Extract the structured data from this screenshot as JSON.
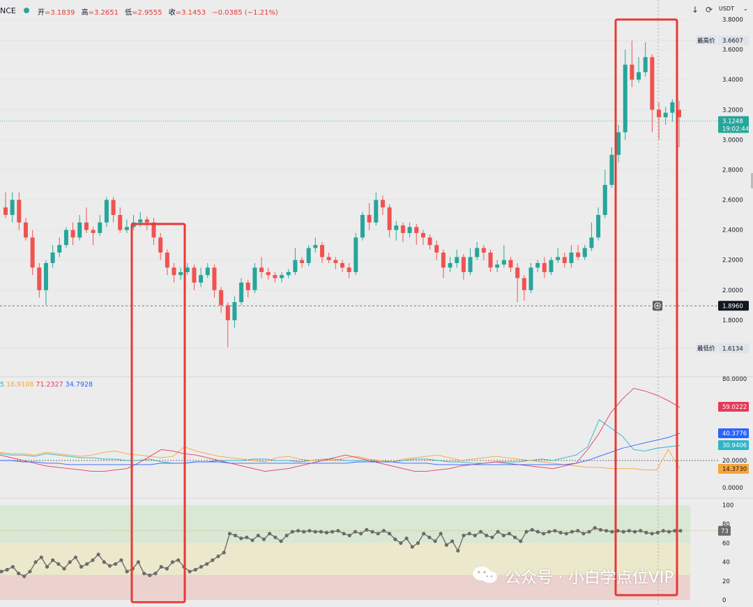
{
  "header": {
    "ticker": "NCE",
    "ohlc": [
      {
        "label": "开",
        "value": "=3.1839"
      },
      {
        "label": "高",
        "value": "=3.2651"
      },
      {
        "label": "低",
        "value": "=2.9555"
      },
      {
        "label": "收",
        "value": "=3.1453"
      },
      {
        "label": "",
        "value": "−0.0385 (−1.21%)"
      }
    ],
    "currency": "USDT",
    "icons": [
      "arrow-down-icon",
      "refresh-icon",
      "caret-down-icon"
    ]
  },
  "indicator_legend": [
    {
      "text": "5",
      "color": "#2bb5c8"
    },
    {
      "text": "16.9108",
      "color": "#f7a43a"
    },
    {
      "text": "71.2327",
      "color": "#e5395a"
    },
    {
      "text": "34.7928",
      "color": "#2962ff"
    }
  ],
  "price_labels": {
    "high_tag": "最高价",
    "high_value": "3.6607",
    "low_tag": "最低价",
    "low_value": "1.6134",
    "last_price": "3.1248",
    "countdown": "19:02:44",
    "crosshair_value": "1.8960"
  },
  "indicator_value_tags": [
    {
      "value": "59.0222",
      "color": "#e5395a"
    },
    {
      "value": "40.3776",
      "color": "#2962ff"
    },
    {
      "value": "30.9406",
      "color": "#2bb5c8"
    },
    {
      "value": "14.3730",
      "color": "#f7a43a"
    }
  ],
  "rsi_tag": "73",
  "watermark": "公众号 · 小白学点位VIP",
  "colors": {
    "up": "#26a69a",
    "down": "#ef5350",
    "highlight_box": "#e53935",
    "rsi_line": "#6b6b6b"
  },
  "chart_data": [
    {
      "type": "candlestick",
      "title": "",
      "xlabel": "",
      "ylabel": "",
      "y_ticks": [
        "3.8000",
        "3.6000",
        "3.4000",
        "3.2000",
        "3.0000",
        "2.8000",
        "2.6000",
        "2.4000",
        "2.2000",
        "2.0000",
        "1.8000"
      ],
      "ylim": [
        1.6,
        3.8
      ],
      "grid": true,
      "candles": [
        [
          2.55,
          2.5,
          2.65,
          2.48
        ],
        [
          2.5,
          2.6,
          2.65,
          2.45
        ],
        [
          2.6,
          2.45,
          2.65,
          2.4
        ],
        [
          2.45,
          2.35,
          2.48,
          2.33
        ],
        [
          2.35,
          2.15,
          2.4,
          2.1
        ],
        [
          2.15,
          2.0,
          2.18,
          1.95
        ],
        [
          2.0,
          2.18,
          2.2,
          1.9
        ],
        [
          2.18,
          2.25,
          2.3,
          2.15
        ],
        [
          2.25,
          2.3,
          2.35,
          2.22
        ],
        [
          2.3,
          2.4,
          2.42,
          2.28
        ],
        [
          2.4,
          2.35,
          2.45,
          2.3
        ],
        [
          2.35,
          2.45,
          2.5,
          2.33
        ],
        [
          2.45,
          2.4,
          2.55,
          2.38
        ],
        [
          2.4,
          2.38,
          2.42,
          2.3
        ],
        [
          2.38,
          2.45,
          2.5,
          2.36
        ],
        [
          2.45,
          2.6,
          2.62,
          2.42
        ],
        [
          2.6,
          2.5,
          2.62,
          2.45
        ],
        [
          2.5,
          2.4,
          2.55,
          2.38
        ],
        [
          2.4,
          2.42,
          2.47,
          2.38
        ],
        [
          2.42,
          2.45,
          2.5,
          2.4
        ],
        [
          2.45,
          2.47,
          2.52,
          2.42
        ],
        [
          2.47,
          2.45,
          2.49,
          2.4
        ],
        [
          2.45,
          2.35,
          2.48,
          2.3
        ],
        [
          2.35,
          2.25,
          2.38,
          2.2
        ],
        [
          2.25,
          2.15,
          2.27,
          2.1
        ],
        [
          2.15,
          2.1,
          2.18,
          2.05
        ],
        [
          2.1,
          2.12,
          2.15,
          2.07
        ],
        [
          2.12,
          2.15,
          2.18,
          2.1
        ],
        [
          2.15,
          2.05,
          2.17,
          2.0
        ],
        [
          2.05,
          2.1,
          2.15,
          2.02
        ],
        [
          2.1,
          2.15,
          2.18,
          2.08
        ],
        [
          2.15,
          2.0,
          2.17,
          1.95
        ],
        [
          2.0,
          1.9,
          2.02,
          1.85
        ],
        [
          1.9,
          1.8,
          1.92,
          1.62
        ],
        [
          1.8,
          1.92,
          1.96,
          1.75
        ],
        [
          1.92,
          2.05,
          2.08,
          1.9
        ],
        [
          2.05,
          2.0,
          2.07,
          1.95
        ],
        [
          2.0,
          2.15,
          2.18,
          1.98
        ],
        [
          2.15,
          2.12,
          2.22,
          2.08
        ],
        [
          2.12,
          2.1,
          2.15,
          2.07
        ],
        [
          2.1,
          2.08,
          2.12,
          2.05
        ],
        [
          2.08,
          2.1,
          2.12,
          2.05
        ],
        [
          2.1,
          2.12,
          2.14,
          2.08
        ],
        [
          2.12,
          2.2,
          2.28,
          2.1
        ],
        [
          2.2,
          2.18,
          2.22,
          2.15
        ],
        [
          2.18,
          2.28,
          2.3,
          2.16
        ],
        [
          2.28,
          2.3,
          2.35,
          2.25
        ],
        [
          2.3,
          2.22,
          2.32,
          2.18
        ],
        [
          2.22,
          2.2,
          2.25,
          2.18
        ],
        [
          2.2,
          2.18,
          2.22,
          2.14
        ],
        [
          2.18,
          2.15,
          2.2,
          2.12
        ],
        [
          2.15,
          2.12,
          2.18,
          2.08
        ],
        [
          2.12,
          2.35,
          2.38,
          2.1
        ],
        [
          2.35,
          2.5,
          2.52,
          2.33
        ],
        [
          2.5,
          2.45,
          2.58,
          2.4
        ],
        [
          2.45,
          2.6,
          2.65,
          2.43
        ],
        [
          2.6,
          2.55,
          2.63,
          2.5
        ],
        [
          2.55,
          2.4,
          2.57,
          2.35
        ],
        [
          2.4,
          2.43,
          2.46,
          2.33
        ],
        [
          2.43,
          2.38,
          2.45,
          2.32
        ],
        [
          2.38,
          2.42,
          2.45,
          2.35
        ],
        [
          2.42,
          2.38,
          2.44,
          2.3
        ],
        [
          2.38,
          2.35,
          2.4,
          2.3
        ],
        [
          2.35,
          2.3,
          2.37,
          2.27
        ],
        [
          2.3,
          2.25,
          2.33,
          2.2
        ],
        [
          2.25,
          2.15,
          2.27,
          2.08
        ],
        [
          2.15,
          2.18,
          2.22,
          2.12
        ],
        [
          2.18,
          2.22,
          2.27,
          2.15
        ],
        [
          2.22,
          2.12,
          2.24,
          2.07
        ],
        [
          2.12,
          2.22,
          2.28,
          2.1
        ],
        [
          2.22,
          2.28,
          2.32,
          2.2
        ],
        [
          2.28,
          2.25,
          2.3,
          2.2
        ],
        [
          2.25,
          2.15,
          2.27,
          2.12
        ],
        [
          2.15,
          2.17,
          2.2,
          2.12
        ],
        [
          2.17,
          2.2,
          2.3,
          2.15
        ],
        [
          2.2,
          2.15,
          2.22,
          2.12
        ],
        [
          2.15,
          2.08,
          2.18,
          1.92
        ],
        [
          2.08,
          2.0,
          2.1,
          1.93
        ],
        [
          2.0,
          2.15,
          2.18,
          1.98
        ],
        [
          2.15,
          2.18,
          2.2,
          2.12
        ],
        [
          2.18,
          2.12,
          2.22,
          2.08
        ],
        [
          2.12,
          2.2,
          2.22,
          2.1
        ],
        [
          2.2,
          2.22,
          2.28,
          2.18
        ],
        [
          2.22,
          2.18,
          2.25,
          2.15
        ],
        [
          2.18,
          2.25,
          2.3,
          2.15
        ],
        [
          2.25,
          2.22,
          2.3,
          2.2
        ],
        [
          2.22,
          2.28,
          2.3,
          2.2
        ],
        [
          2.28,
          2.35,
          2.45,
          2.26
        ],
        [
          2.35,
          2.5,
          2.55,
          2.33
        ],
        [
          2.5,
          2.7,
          2.8,
          2.48
        ],
        [
          2.7,
          2.9,
          2.95,
          2.68
        ],
        [
          2.9,
          3.05,
          3.1,
          2.85
        ],
        [
          3.05,
          3.5,
          3.6,
          3.0
        ],
        [
          3.5,
          3.4,
          3.66,
          3.35
        ],
        [
          3.4,
          3.45,
          3.55,
          3.38
        ],
        [
          3.45,
          3.55,
          3.65,
          3.42
        ],
        [
          3.55,
          3.2,
          3.57,
          3.05
        ],
        [
          3.2,
          3.15,
          3.25,
          3.0
        ],
        [
          3.15,
          3.18,
          3.22,
          3.1
        ],
        [
          3.18,
          3.25,
          3.27,
          3.12
        ],
        [
          3.2,
          3.15,
          3.26,
          2.95
        ]
      ],
      "annotations": [
        "最高价 3.6607",
        "最低价 1.6134",
        "3.1248",
        "19:02:44",
        "1.8960"
      ]
    },
    {
      "type": "line",
      "title": "",
      "xlabel": "",
      "ylabel": "",
      "y_ticks": [
        "80.0000",
        "20.0000",
        "0.0000"
      ],
      "ylim": [
        0,
        80
      ],
      "reference_line": 20,
      "series": [
        {
          "values": [
            25,
            24,
            24,
            23,
            25,
            24,
            23,
            22,
            22,
            21,
            21,
            20,
            20,
            21,
            19,
            18,
            18,
            19,
            19,
            20,
            20,
            20,
            21,
            21,
            20,
            20,
            19,
            20,
            21,
            21,
            20,
            20,
            20,
            19,
            19,
            20,
            21,
            21,
            20,
            19,
            19,
            18,
            18,
            19,
            19,
            19,
            20,
            21,
            20,
            22,
            24,
            30,
            50,
            44,
            38,
            28,
            27,
            29,
            30,
            31
          ]
        },
        {
          "values": [
            26,
            25,
            25,
            24,
            26,
            25,
            24,
            23,
            24,
            26,
            27,
            25,
            24,
            23,
            22,
            23,
            30,
            27,
            25,
            23,
            22,
            21,
            20,
            19,
            22,
            23,
            21,
            20,
            21,
            20,
            22,
            23,
            21,
            20,
            19,
            21,
            22,
            23,
            24,
            22,
            20,
            21,
            22,
            23,
            22,
            21,
            20,
            19,
            18,
            17,
            16,
            15,
            15,
            14,
            14,
            14,
            13,
            13,
            28,
            14
          ]
        },
        {
          "values": [
            24,
            22,
            20,
            18,
            16,
            15,
            14,
            13,
            12,
            12,
            13,
            14,
            18,
            23,
            28,
            27,
            25,
            24,
            22,
            20,
            18,
            16,
            14,
            12,
            13,
            14,
            16,
            18,
            20,
            22,
            24,
            22,
            20,
            18,
            16,
            14,
            12,
            12,
            13,
            14,
            16,
            17,
            18,
            19,
            18,
            17,
            16,
            15,
            14,
            16,
            18,
            28,
            40,
            55,
            65,
            73,
            71,
            68,
            64,
            59
          ]
        },
        {
          "values": [
            20,
            20,
            19,
            19,
            18,
            18,
            17,
            17,
            17,
            17,
            17,
            17,
            17,
            17,
            18,
            18,
            18,
            19,
            19,
            19,
            18,
            18,
            18,
            18,
            18,
            18,
            18,
            18,
            18,
            18,
            18,
            19,
            19,
            19,
            19,
            18,
            18,
            18,
            17,
            17,
            17,
            17,
            17,
            17,
            17,
            17,
            17,
            17,
            17,
            17,
            18,
            20,
            23,
            26,
            29,
            31,
            33,
            35,
            37,
            40
          ]
        }
      ]
    },
    {
      "type": "line",
      "title": "",
      "xlabel": "",
      "ylabel": "",
      "y_ticks": [
        "100",
        "80",
        "60",
        "40",
        "20",
        "0"
      ],
      "ylim": [
        0,
        100
      ],
      "reference_line": 73,
      "series": [
        {
          "values": [
            30,
            32,
            35,
            28,
            25,
            30,
            40,
            45,
            35,
            42,
            38,
            33,
            40,
            45,
            35,
            38,
            42,
            48,
            40,
            36,
            38,
            42,
            30,
            33,
            40,
            28,
            26,
            28,
            35,
            33,
            40,
            42,
            35,
            30,
            32,
            35,
            38,
            42,
            46,
            50,
            70,
            68,
            65,
            66,
            63,
            68,
            64,
            70,
            66,
            62,
            68,
            72,
            73,
            72,
            73,
            72,
            72,
            71,
            72,
            73,
            70,
            68,
            72,
            70,
            74,
            72,
            70,
            73,
            70,
            64,
            60,
            65,
            56,
            60,
            70,
            66,
            62,
            70,
            58,
            62,
            52,
            68,
            70,
            68,
            72,
            68,
            66,
            72,
            68,
            70,
            66,
            62,
            72,
            74,
            72,
            70,
            72,
            73,
            71,
            70,
            72,
            73,
            70,
            72,
            76,
            74,
            73,
            72,
            73,
            72,
            73,
            72,
            73,
            71,
            70,
            71,
            73,
            72,
            73,
            73
          ]
        }
      ]
    }
  ]
}
